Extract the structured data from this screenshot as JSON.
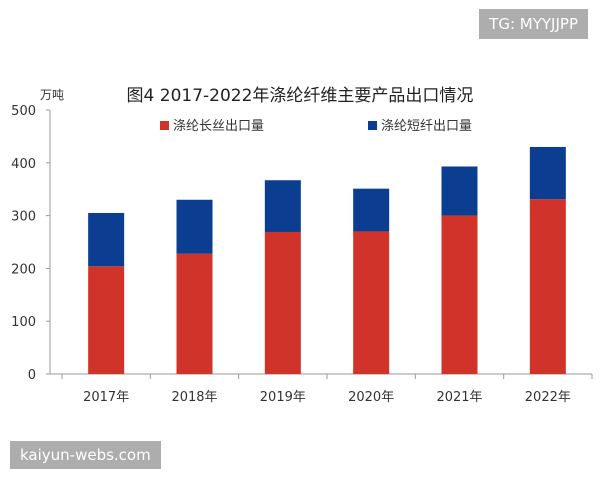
{
  "watermarks": {
    "top": "TG: MYYJJPP",
    "bottom": "kaiyun-webs.com"
  },
  "chart_data": {
    "type": "bar",
    "stacked": true,
    "title": "图4 2017-2022年涤纶纤维主要产品出口情况",
    "ylabel": "万吨",
    "xlabel": "",
    "categories": [
      "2017年",
      "2018年",
      "2019年",
      "2020年",
      "2021年",
      "2022年"
    ],
    "series": [
      {
        "name": "涤纶长丝出口量",
        "color": "#d0332a",
        "values": [
          204,
          228,
          269,
          270,
          300,
          331
        ]
      },
      {
        "name": "涤纶短纤出口量",
        "color": "#0b3d91",
        "values": [
          101,
          102,
          98,
          81,
          93,
          99
        ]
      }
    ],
    "ylim": [
      0,
      500
    ],
    "yticks": [
      0,
      100,
      200,
      300,
      400,
      500
    ],
    "grid": false,
    "legend_position": "top"
  }
}
